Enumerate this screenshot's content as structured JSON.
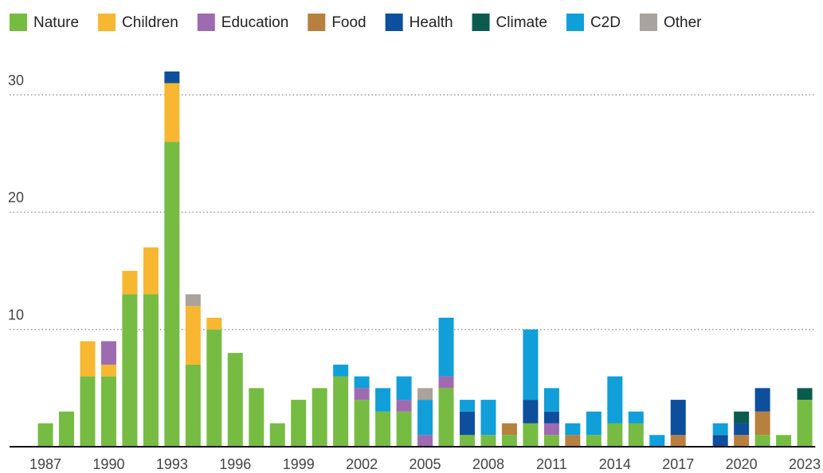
{
  "chart_data": {
    "type": "stacked_bar",
    "categories": [
      "1987",
      null,
      null,
      "1990",
      null,
      null,
      "1993",
      null,
      null,
      "1996",
      null,
      null,
      "1999",
      null,
      null,
      "2002",
      null,
      null,
      "2005",
      null,
      null,
      "2008",
      null,
      null,
      "2011",
      null,
      null,
      "2014",
      null,
      null,
      "2017",
      null,
      null,
      "2020",
      null,
      null,
      "2023"
    ],
    "series": [
      {
        "name": "Nature",
        "color": "#76bc43",
        "values": [
          2,
          3,
          6,
          6,
          13,
          13,
          26,
          7,
          10,
          8,
          5,
          2,
          4,
          5,
          6,
          4,
          3,
          3,
          0,
          5,
          1,
          1,
          1,
          2,
          1,
          0,
          1,
          2,
          2,
          0,
          0,
          0,
          0,
          0,
          1,
          1,
          4
        ]
      },
      {
        "name": "Children",
        "color": "#f7b731",
        "values": [
          0,
          0,
          3,
          1,
          2,
          4,
          5,
          5,
          1,
          0,
          0,
          0,
          0,
          0,
          0,
          0,
          0,
          0,
          0,
          0,
          0,
          0,
          0,
          0,
          0,
          0,
          0,
          0,
          0,
          0,
          0,
          0,
          0,
          0,
          0,
          0,
          0
        ]
      },
      {
        "name": "Education",
        "color": "#9e6bb0",
        "values": [
          0,
          0,
          0,
          2,
          0,
          0,
          0,
          0,
          0,
          0,
          0,
          0,
          0,
          0,
          0,
          1,
          0,
          1,
          1,
          1,
          0,
          0,
          0,
          0,
          1,
          0,
          0,
          0,
          0,
          0,
          0,
          0,
          0,
          0,
          0,
          0,
          0
        ]
      },
      {
        "name": "Food",
        "color": "#b8803e",
        "values": [
          0,
          0,
          0,
          0,
          0,
          0,
          0,
          0,
          0,
          0,
          0,
          0,
          0,
          0,
          0,
          0,
          0,
          0,
          0,
          0,
          0,
          0,
          1,
          0,
          0,
          1,
          0,
          0,
          0,
          0,
          1,
          0,
          0,
          1,
          2,
          0,
          0
        ]
      },
      {
        "name": "Health",
        "color": "#0d4f9c",
        "values": [
          0,
          0,
          0,
          0,
          0,
          0,
          1,
          0,
          0,
          0,
          0,
          0,
          0,
          0,
          0,
          0,
          0,
          0,
          0,
          0,
          2,
          0,
          0,
          2,
          1,
          0,
          0,
          0,
          0,
          0,
          3,
          0,
          1,
          1,
          2,
          0,
          0
        ]
      },
      {
        "name": "Climate",
        "color": "#0b5b4f",
        "values": [
          0,
          0,
          0,
          0,
          0,
          0,
          0,
          0,
          0,
          0,
          0,
          0,
          0,
          0,
          0,
          0,
          0,
          0,
          0,
          0,
          0,
          0,
          0,
          0,
          0,
          0,
          0,
          0,
          0,
          0,
          0,
          0,
          0,
          1,
          0,
          0,
          1
        ]
      },
      {
        "name": "C2D",
        "color": "#109fd9",
        "values": [
          0,
          0,
          0,
          0,
          0,
          0,
          0,
          0,
          0,
          0,
          0,
          0,
          0,
          0,
          1,
          1,
          2,
          2,
          3,
          5,
          1,
          3,
          0,
          6,
          2,
          1,
          2,
          4,
          1,
          1,
          0,
          0,
          1,
          0,
          0,
          0,
          0
        ]
      },
      {
        "name": "Other",
        "color": "#aaa29b",
        "values": [
          0,
          0,
          0,
          0,
          0,
          0,
          0,
          1,
          0,
          0,
          0,
          0,
          0,
          0,
          0,
          0,
          0,
          0,
          1,
          0,
          0,
          0,
          0,
          0,
          0,
          0,
          0,
          0,
          0,
          0,
          0,
          0,
          0,
          0,
          0,
          0,
          0
        ]
      }
    ],
    "ylim": [
      0,
      33
    ],
    "yticks": [
      10,
      20,
      30
    ],
    "grid": true,
    "legend": "top"
  }
}
